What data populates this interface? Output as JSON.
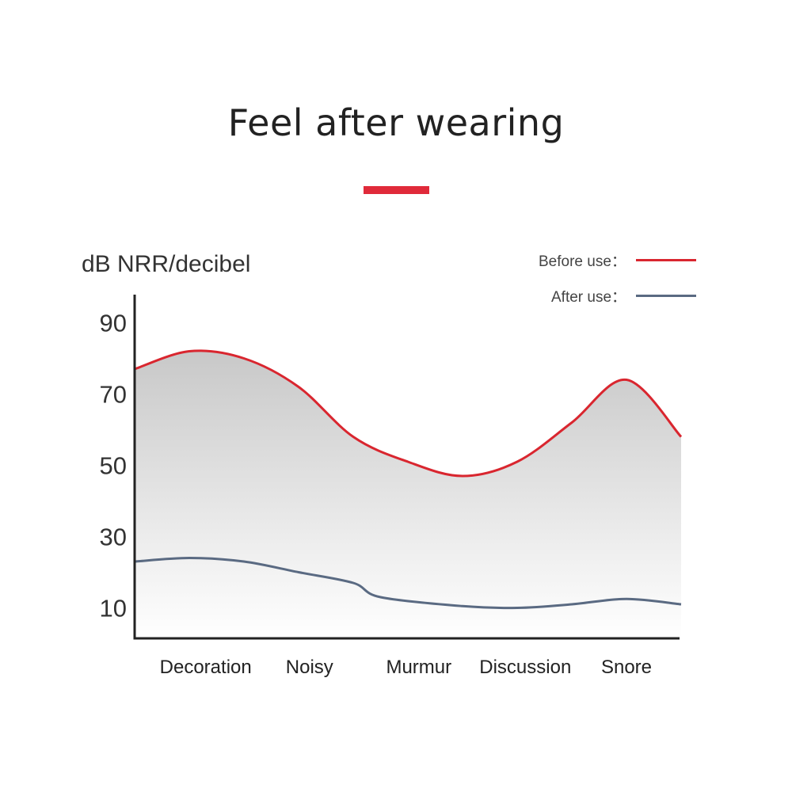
{
  "title": "Feel after wearing",
  "colors": {
    "accent": "#e02a3a",
    "before": "#d9262f",
    "after": "#5a6a82",
    "axis": "#222222",
    "fill_top": "#c8c8c8"
  },
  "legend": {
    "before_label": "Before use：",
    "after_label": "After use："
  },
  "chart_data": {
    "type": "line",
    "ylabel": "dB NRR/decibel",
    "xlabel": "",
    "categories": [
      "Decoration",
      "Noisy",
      "Murmur",
      "Discussion",
      "Snore"
    ],
    "yticks": [
      10,
      30,
      50,
      70,
      90
    ],
    "ylim": [
      1,
      99
    ],
    "grid": false,
    "legend_position": "top-right",
    "series": [
      {
        "name": "Before use",
        "color": "#d9262f",
        "shaded_area": true,
        "points": [
          {
            "x": 0.0,
            "y": 77
          },
          {
            "x": 0.1,
            "y": 82
          },
          {
            "x": 0.2,
            "y": 80
          },
          {
            "x": 0.3,
            "y": 72
          },
          {
            "x": 0.4,
            "y": 58
          },
          {
            "x": 0.5,
            "y": 51
          },
          {
            "x": 0.6,
            "y": 47
          },
          {
            "x": 0.7,
            "y": 51
          },
          {
            "x": 0.8,
            "y": 62
          },
          {
            "x": 0.9,
            "y": 74
          },
          {
            "x": 1.0,
            "y": 58
          }
        ]
      },
      {
        "name": "After use",
        "color": "#5a6a82",
        "shaded_area": false,
        "points": [
          {
            "x": 0.0,
            "y": 23
          },
          {
            "x": 0.1,
            "y": 24
          },
          {
            "x": 0.2,
            "y": 23
          },
          {
            "x": 0.3,
            "y": 20
          },
          {
            "x": 0.4,
            "y": 17
          },
          {
            "x": 0.45,
            "y": 13
          },
          {
            "x": 0.6,
            "y": 10.5
          },
          {
            "x": 0.7,
            "y": 10
          },
          {
            "x": 0.8,
            "y": 11
          },
          {
            "x": 0.9,
            "y": 12.5
          },
          {
            "x": 1.0,
            "y": 11
          }
        ]
      }
    ]
  }
}
